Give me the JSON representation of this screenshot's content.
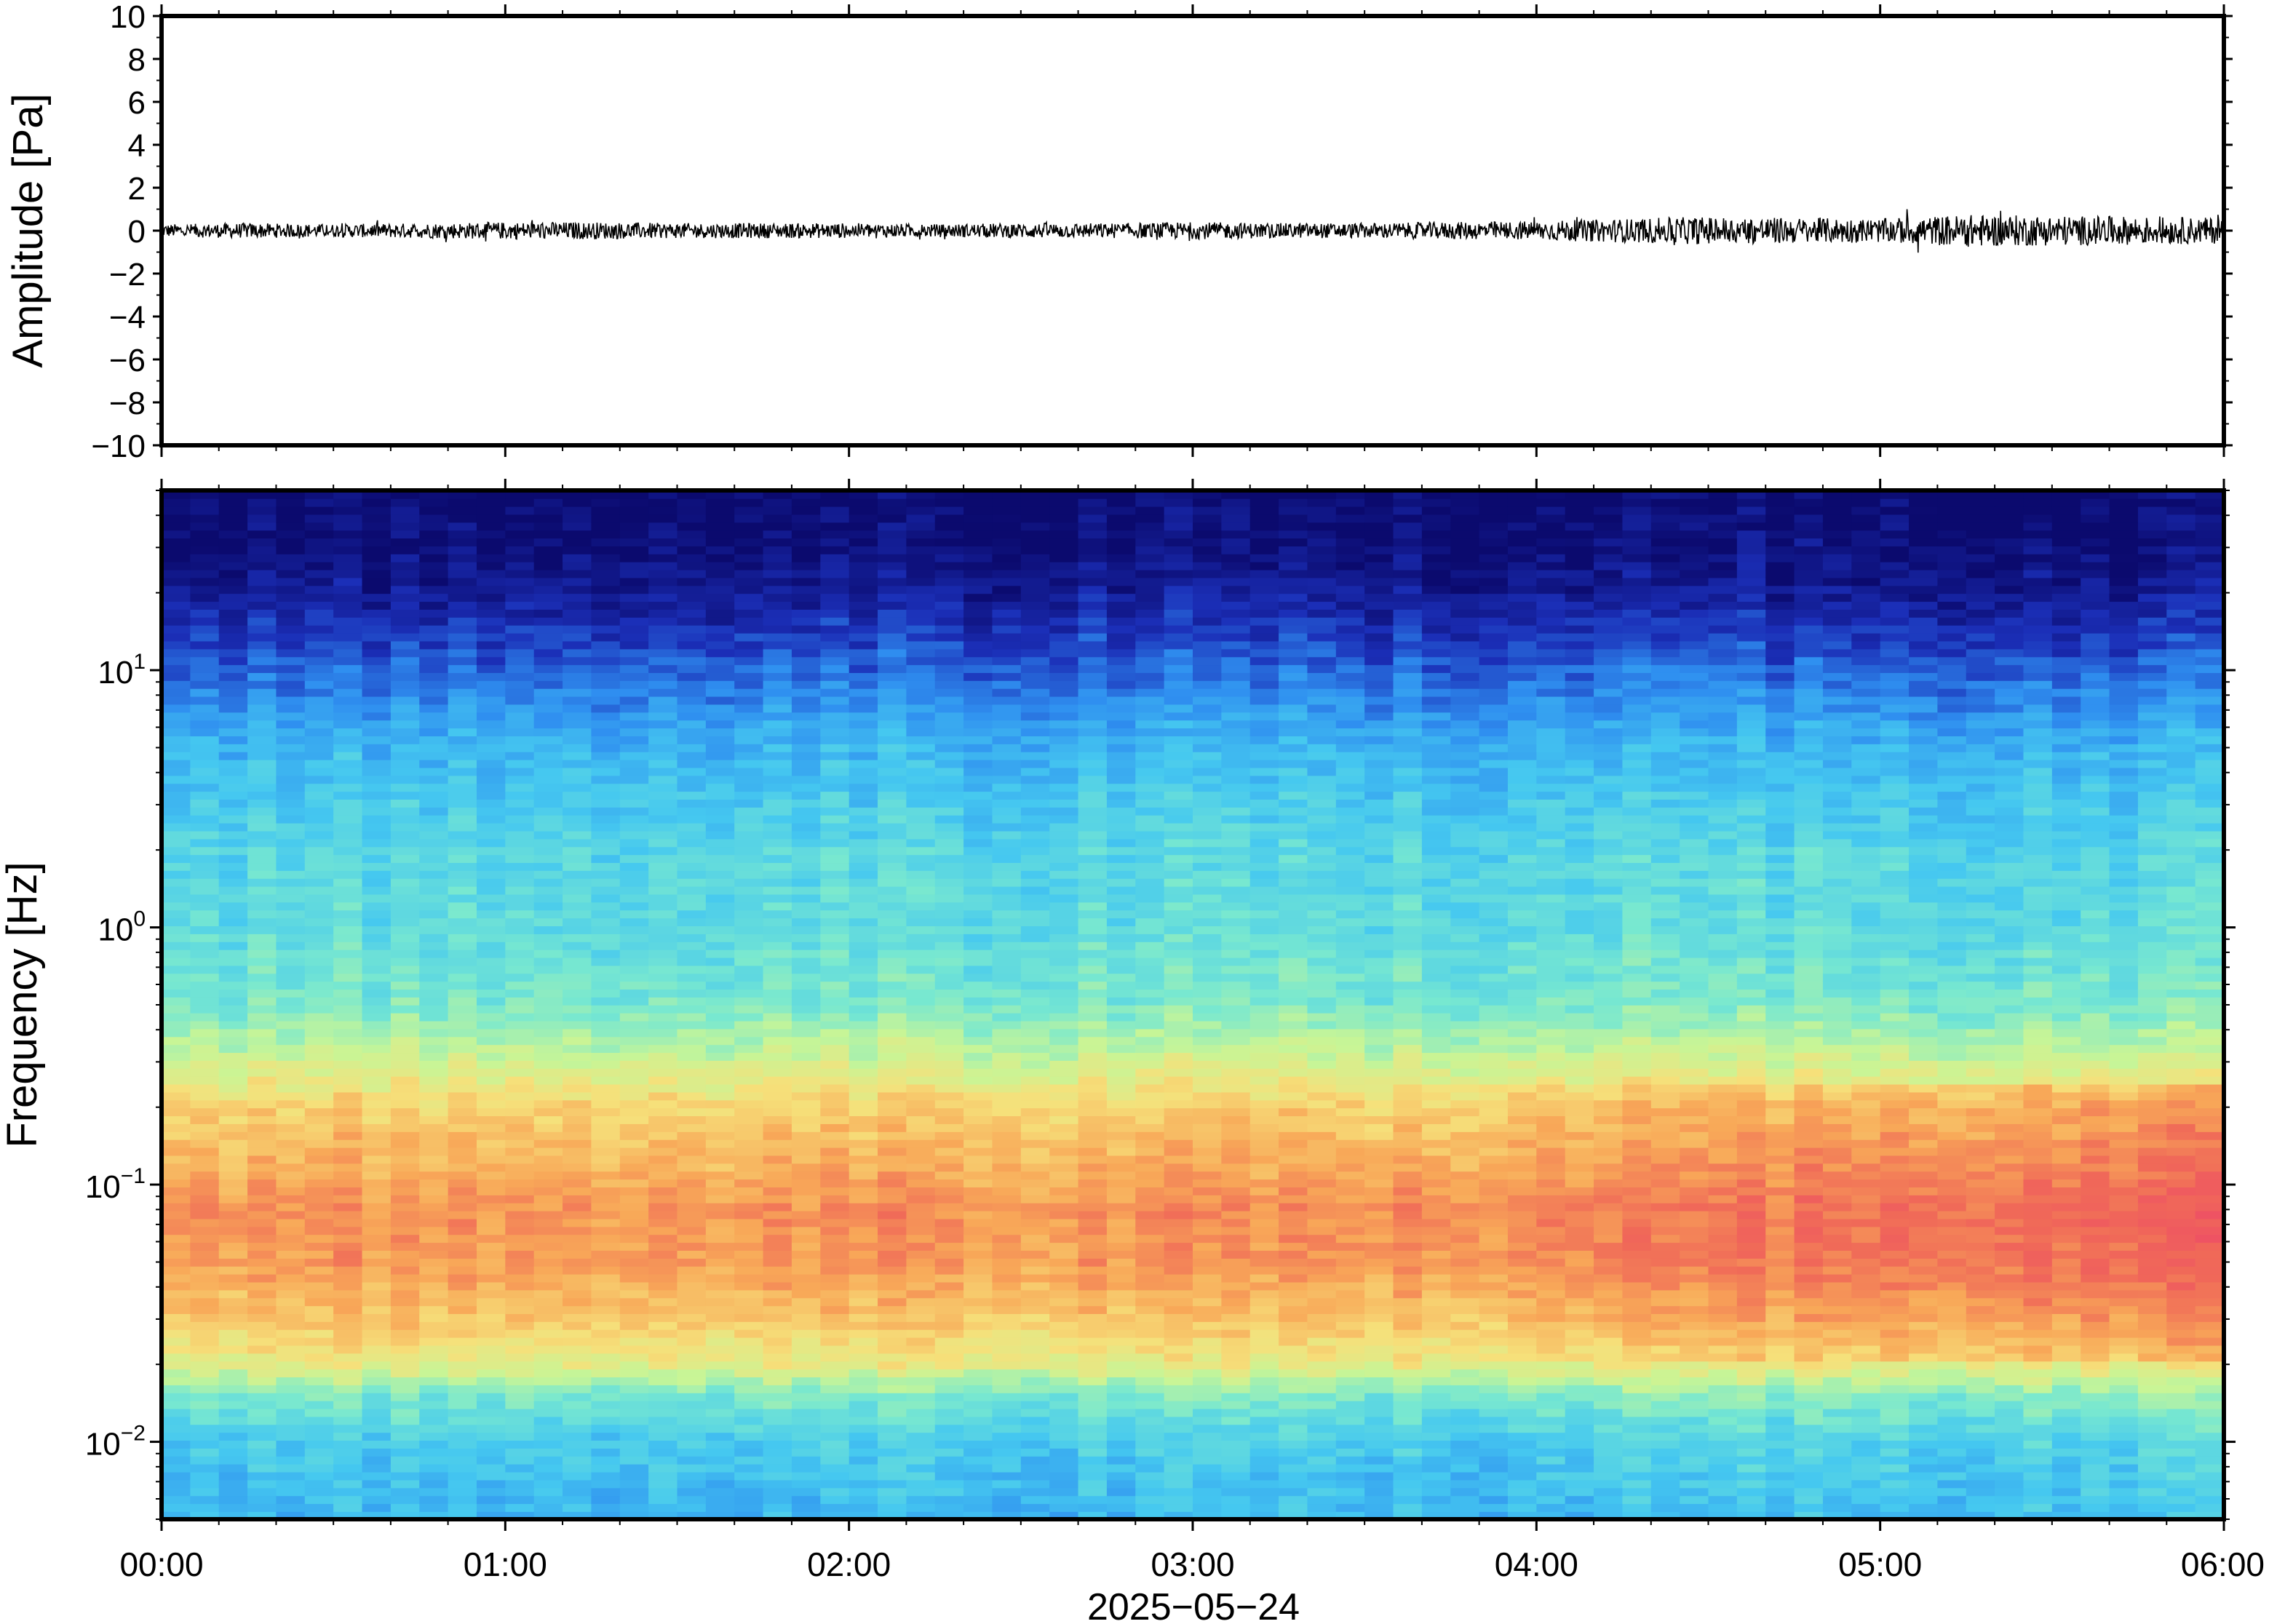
{
  "chart_data": [
    {
      "type": "line",
      "panel": "waveform",
      "ylabel": "Amplitude [Pa]",
      "ylim": [
        -10,
        10
      ],
      "yticks": [
        10,
        8,
        6,
        4,
        2,
        0,
        -2,
        -4,
        -6,
        -8,
        -10
      ],
      "ytick_labels": [
        "10",
        "8",
        "6",
        "4",
        "2",
        "0",
        "−2",
        "−4",
        "−6",
        "−8",
        "−10"
      ],
      "xlim": [
        "00:00",
        "06:00"
      ],
      "series": [
        {
          "x_hours": [
            0.0,
            0.25,
            0.5,
            0.75,
            1.0,
            1.25,
            1.5,
            1.75,
            2.0,
            2.25,
            2.5,
            2.75,
            3.0,
            3.25,
            3.5,
            3.75,
            4.0,
            4.25,
            4.5,
            4.75,
            5.0,
            5.25,
            5.5,
            5.75,
            6.0
          ],
          "envelope_pa": [
            0.3,
            0.35,
            0.3,
            0.35,
            0.4,
            0.4,
            0.35,
            0.35,
            0.35,
            0.3,
            0.35,
            0.35,
            0.4,
            0.35,
            0.35,
            0.4,
            0.45,
            0.55,
            0.65,
            0.6,
            0.55,
            0.75,
            0.7,
            0.65,
            0.6
          ],
          "peak_pa": [
            0.5,
            0.5,
            0.5,
            0.55,
            0.55,
            0.6,
            0.5,
            0.5,
            0.5,
            0.45,
            0.5,
            0.5,
            0.6,
            0.5,
            0.5,
            0.6,
            0.7,
            1.0,
            1.3,
            0.9,
            0.9,
            1.4,
            1.1,
            1.0,
            1.0
          ],
          "color": "#000000"
        }
      ]
    },
    {
      "type": "heatmap",
      "panel": "spectrogram",
      "ylabel": "Frequency [Hz]",
      "yscale": "log",
      "ylim_hz": [
        0.005,
        50
      ],
      "ytick_labels": [
        {
          "base": "10",
          "exp": "1",
          "value": 10
        },
        {
          "base": "10",
          "exp": "0",
          "value": 1
        },
        {
          "base": "10",
          "exp": "−1",
          "value": 0.1
        },
        {
          "base": "10",
          "exp": "−2",
          "value": 0.01
        }
      ],
      "xlabel": "2025−05−24",
      "xticks": [
        "00:00",
        "01:00",
        "02:00",
        "03:00",
        "04:00",
        "05:00",
        "06:00"
      ],
      "colormap": [
        "#0b0a6e",
        "#1b2fb8",
        "#2f8ff0",
        "#45c8f0",
        "#78e8d0",
        "#c8f596",
        "#f6e07a",
        "#f8a858",
        "#f06a58",
        "#ee4c66"
      ],
      "time_segments": 72,
      "profile_freq_hz": [
        0.005,
        0.01,
        0.015,
        0.02,
        0.03,
        0.05,
        0.08,
        0.12,
        0.2,
        0.3,
        0.5,
        1,
        2,
        5,
        10,
        20,
        30,
        50
      ],
      "profile_level": [
        0.3,
        0.35,
        0.45,
        0.62,
        0.72,
        0.8,
        0.82,
        0.76,
        0.7,
        0.58,
        0.45,
        0.4,
        0.38,
        0.3,
        0.18,
        0.06,
        0.02,
        0.0
      ]
    }
  ]
}
